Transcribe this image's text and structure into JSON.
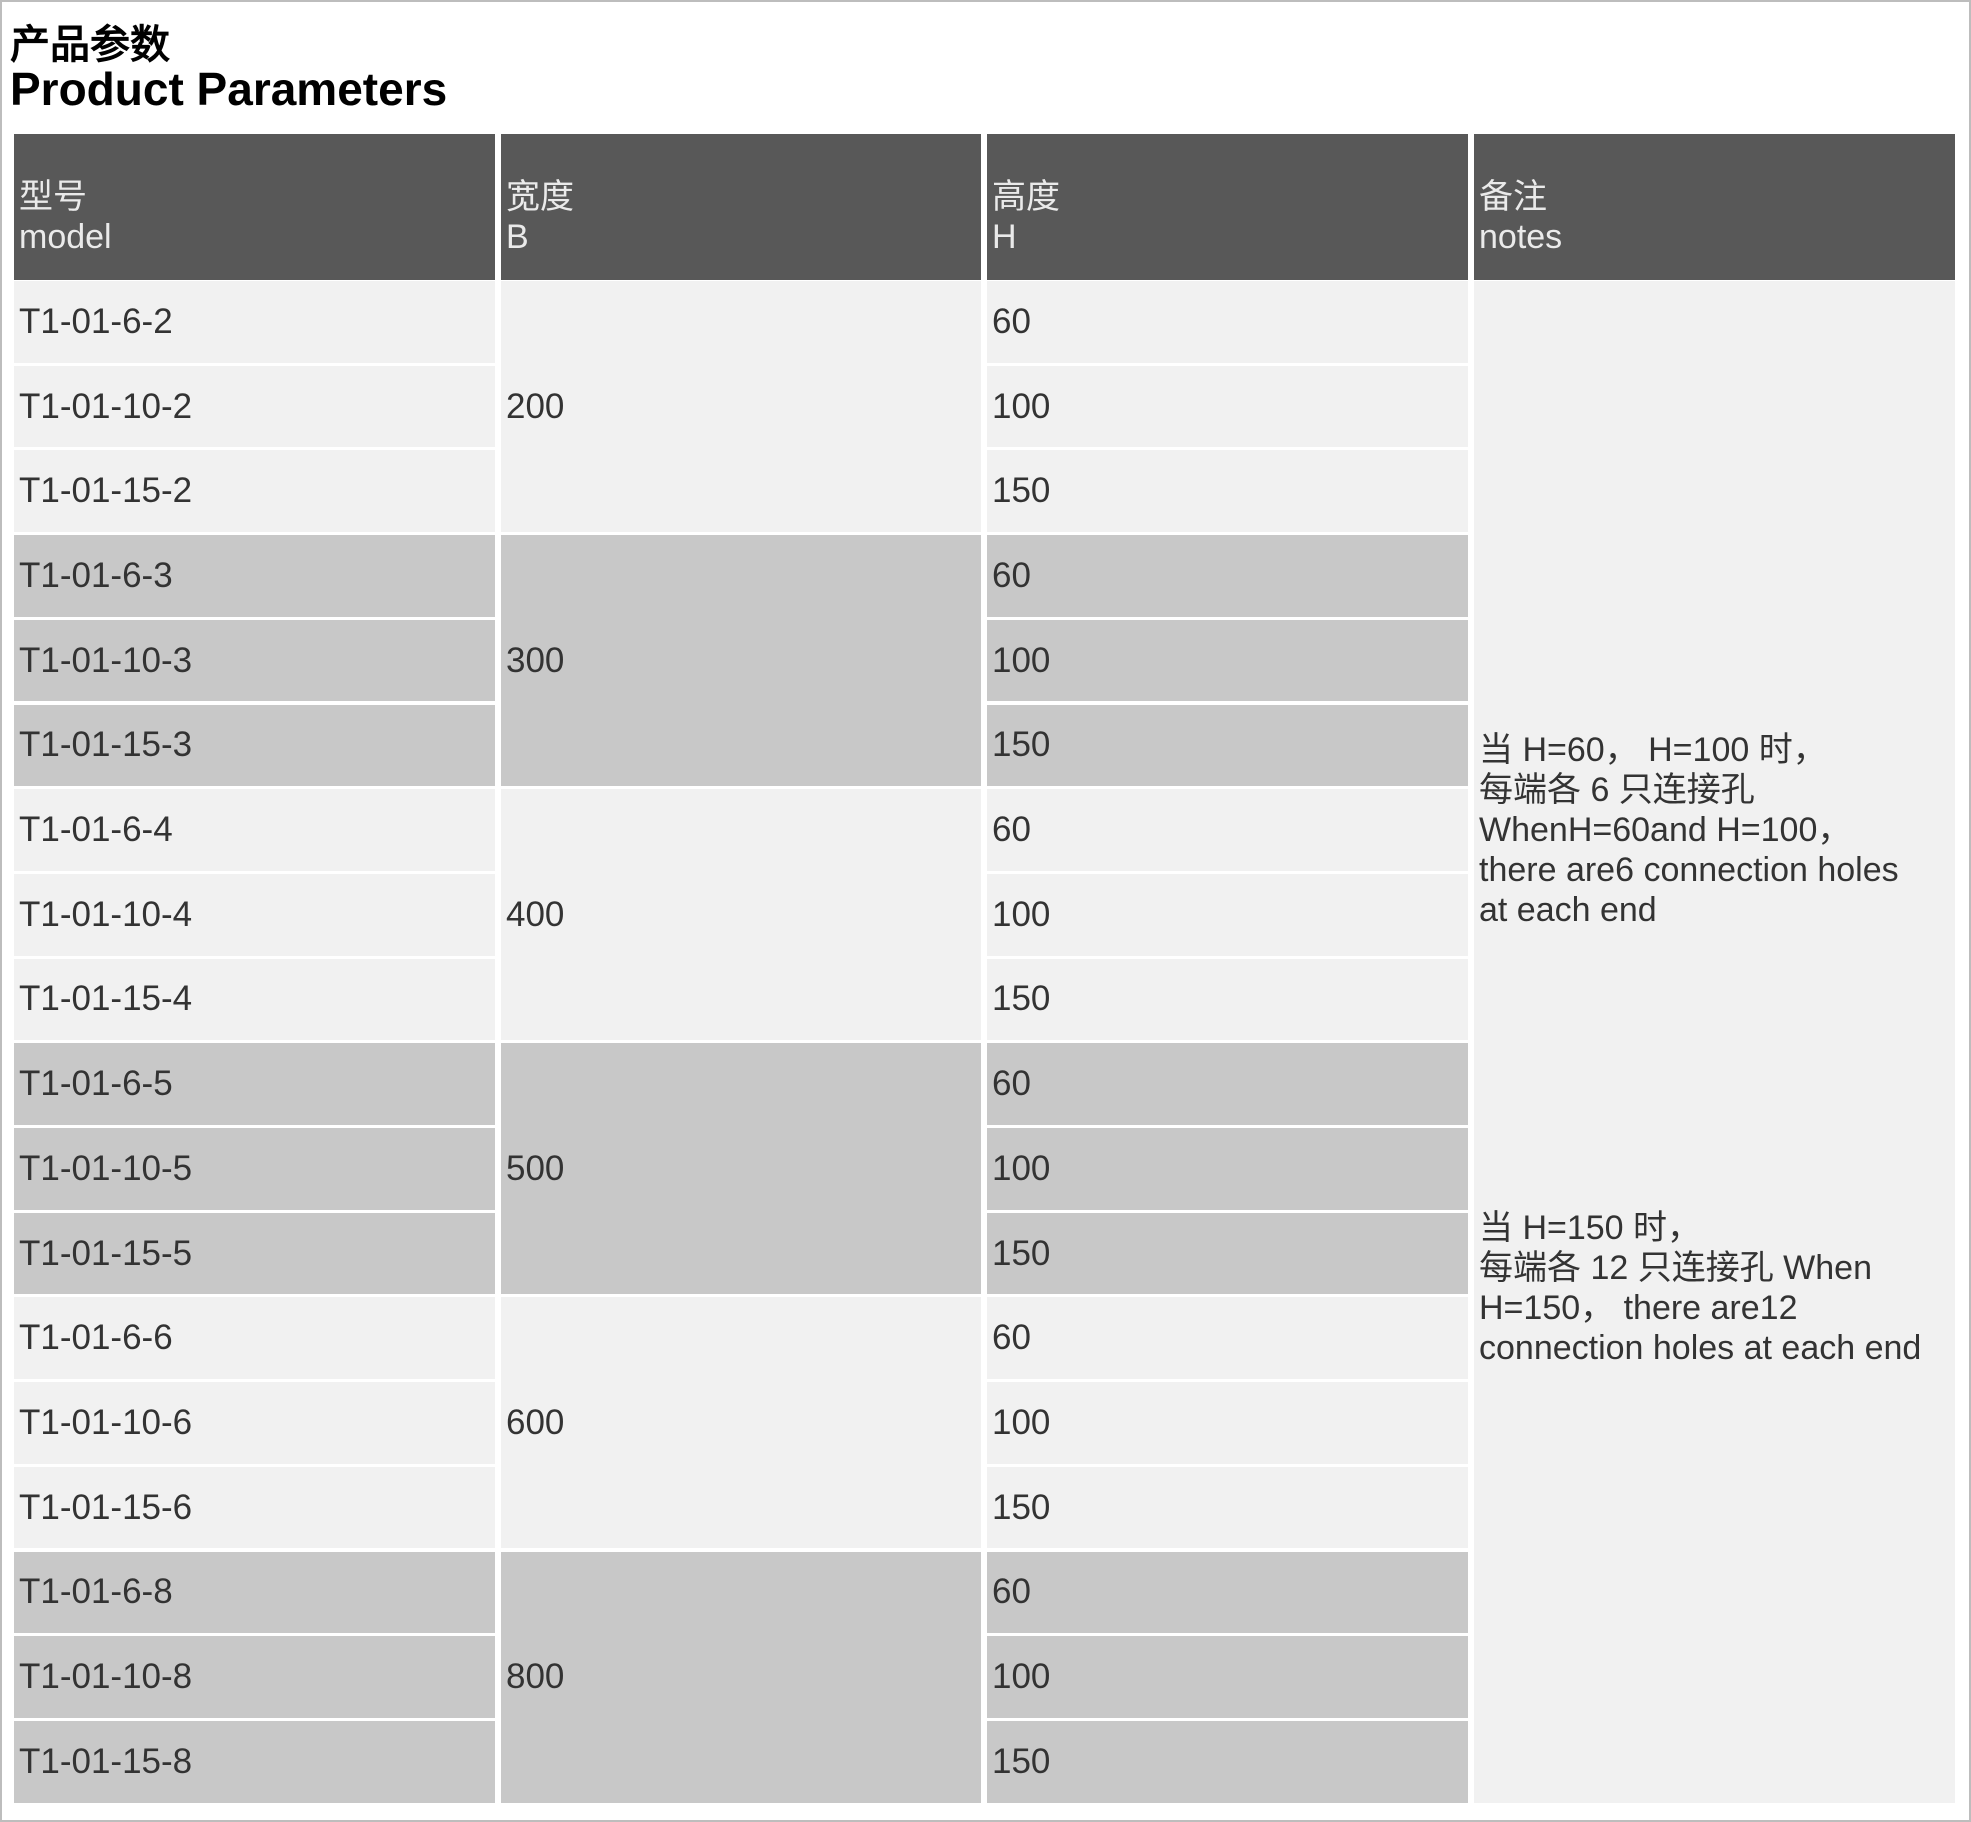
{
  "title_cn": "产品参数",
  "title_en": "Product Parameters",
  "columns": [
    {
      "cn": "型号",
      "en": "model"
    },
    {
      "cn": "宽度",
      "en": "B"
    },
    {
      "cn": "高度",
      "en": "H"
    },
    {
      "cn": "备注",
      "en": "notes"
    }
  ],
  "groups": [
    {
      "width": "200",
      "rows": [
        {
          "model": "T1-01-6-2",
          "height": "60"
        },
        {
          "model": "T1-01-10-2",
          "height": "100"
        },
        {
          "model": "T1-01-15-2",
          "height": "150"
        }
      ]
    },
    {
      "width": "300",
      "rows": [
        {
          "model": "T1-01-6-3",
          "height": "60"
        },
        {
          "model": "T1-01-10-3",
          "height": "100"
        },
        {
          "model": "T1-01-15-3",
          "height": "150"
        }
      ]
    },
    {
      "width": "400",
      "rows": [
        {
          "model": "T1-01-6-4",
          "height": "60"
        },
        {
          "model": "T1-01-10-4",
          "height": "100"
        },
        {
          "model": "T1-01-15-4",
          "height": "150"
        }
      ]
    },
    {
      "width": "500",
      "rows": [
        {
          "model": "T1-01-6-5",
          "height": "60"
        },
        {
          "model": "T1-01-10-5",
          "height": "100"
        },
        {
          "model": "T1-01-15-5",
          "height": "150"
        }
      ]
    },
    {
      "width": "600",
      "rows": [
        {
          "model": "T1-01-6-6",
          "height": "60"
        },
        {
          "model": "T1-01-10-6",
          "height": "100"
        },
        {
          "model": "T1-01-15-6",
          "height": "150"
        }
      ]
    },
    {
      "width": "800",
      "rows": [
        {
          "model": "T1-01-6-8",
          "height": "60"
        },
        {
          "model": "T1-01-10-8",
          "height": "100"
        },
        {
          "model": "T1-01-15-8",
          "height": "150"
        }
      ]
    }
  ],
  "notes": [
    "当 H=60， H=100 时，\n每端各 6 只连接孔\nWhenH=60and H=100，\nthere are6 connection holes\nat each end",
    "当 H=150 时，\n每端各 12 只连接孔 When\nH=150，  there are12\nconnection holes at each end"
  ],
  "colors": {
    "header": "#585858",
    "row_light": "#f1f1f1",
    "row_dark": "#c8c8c8"
  }
}
